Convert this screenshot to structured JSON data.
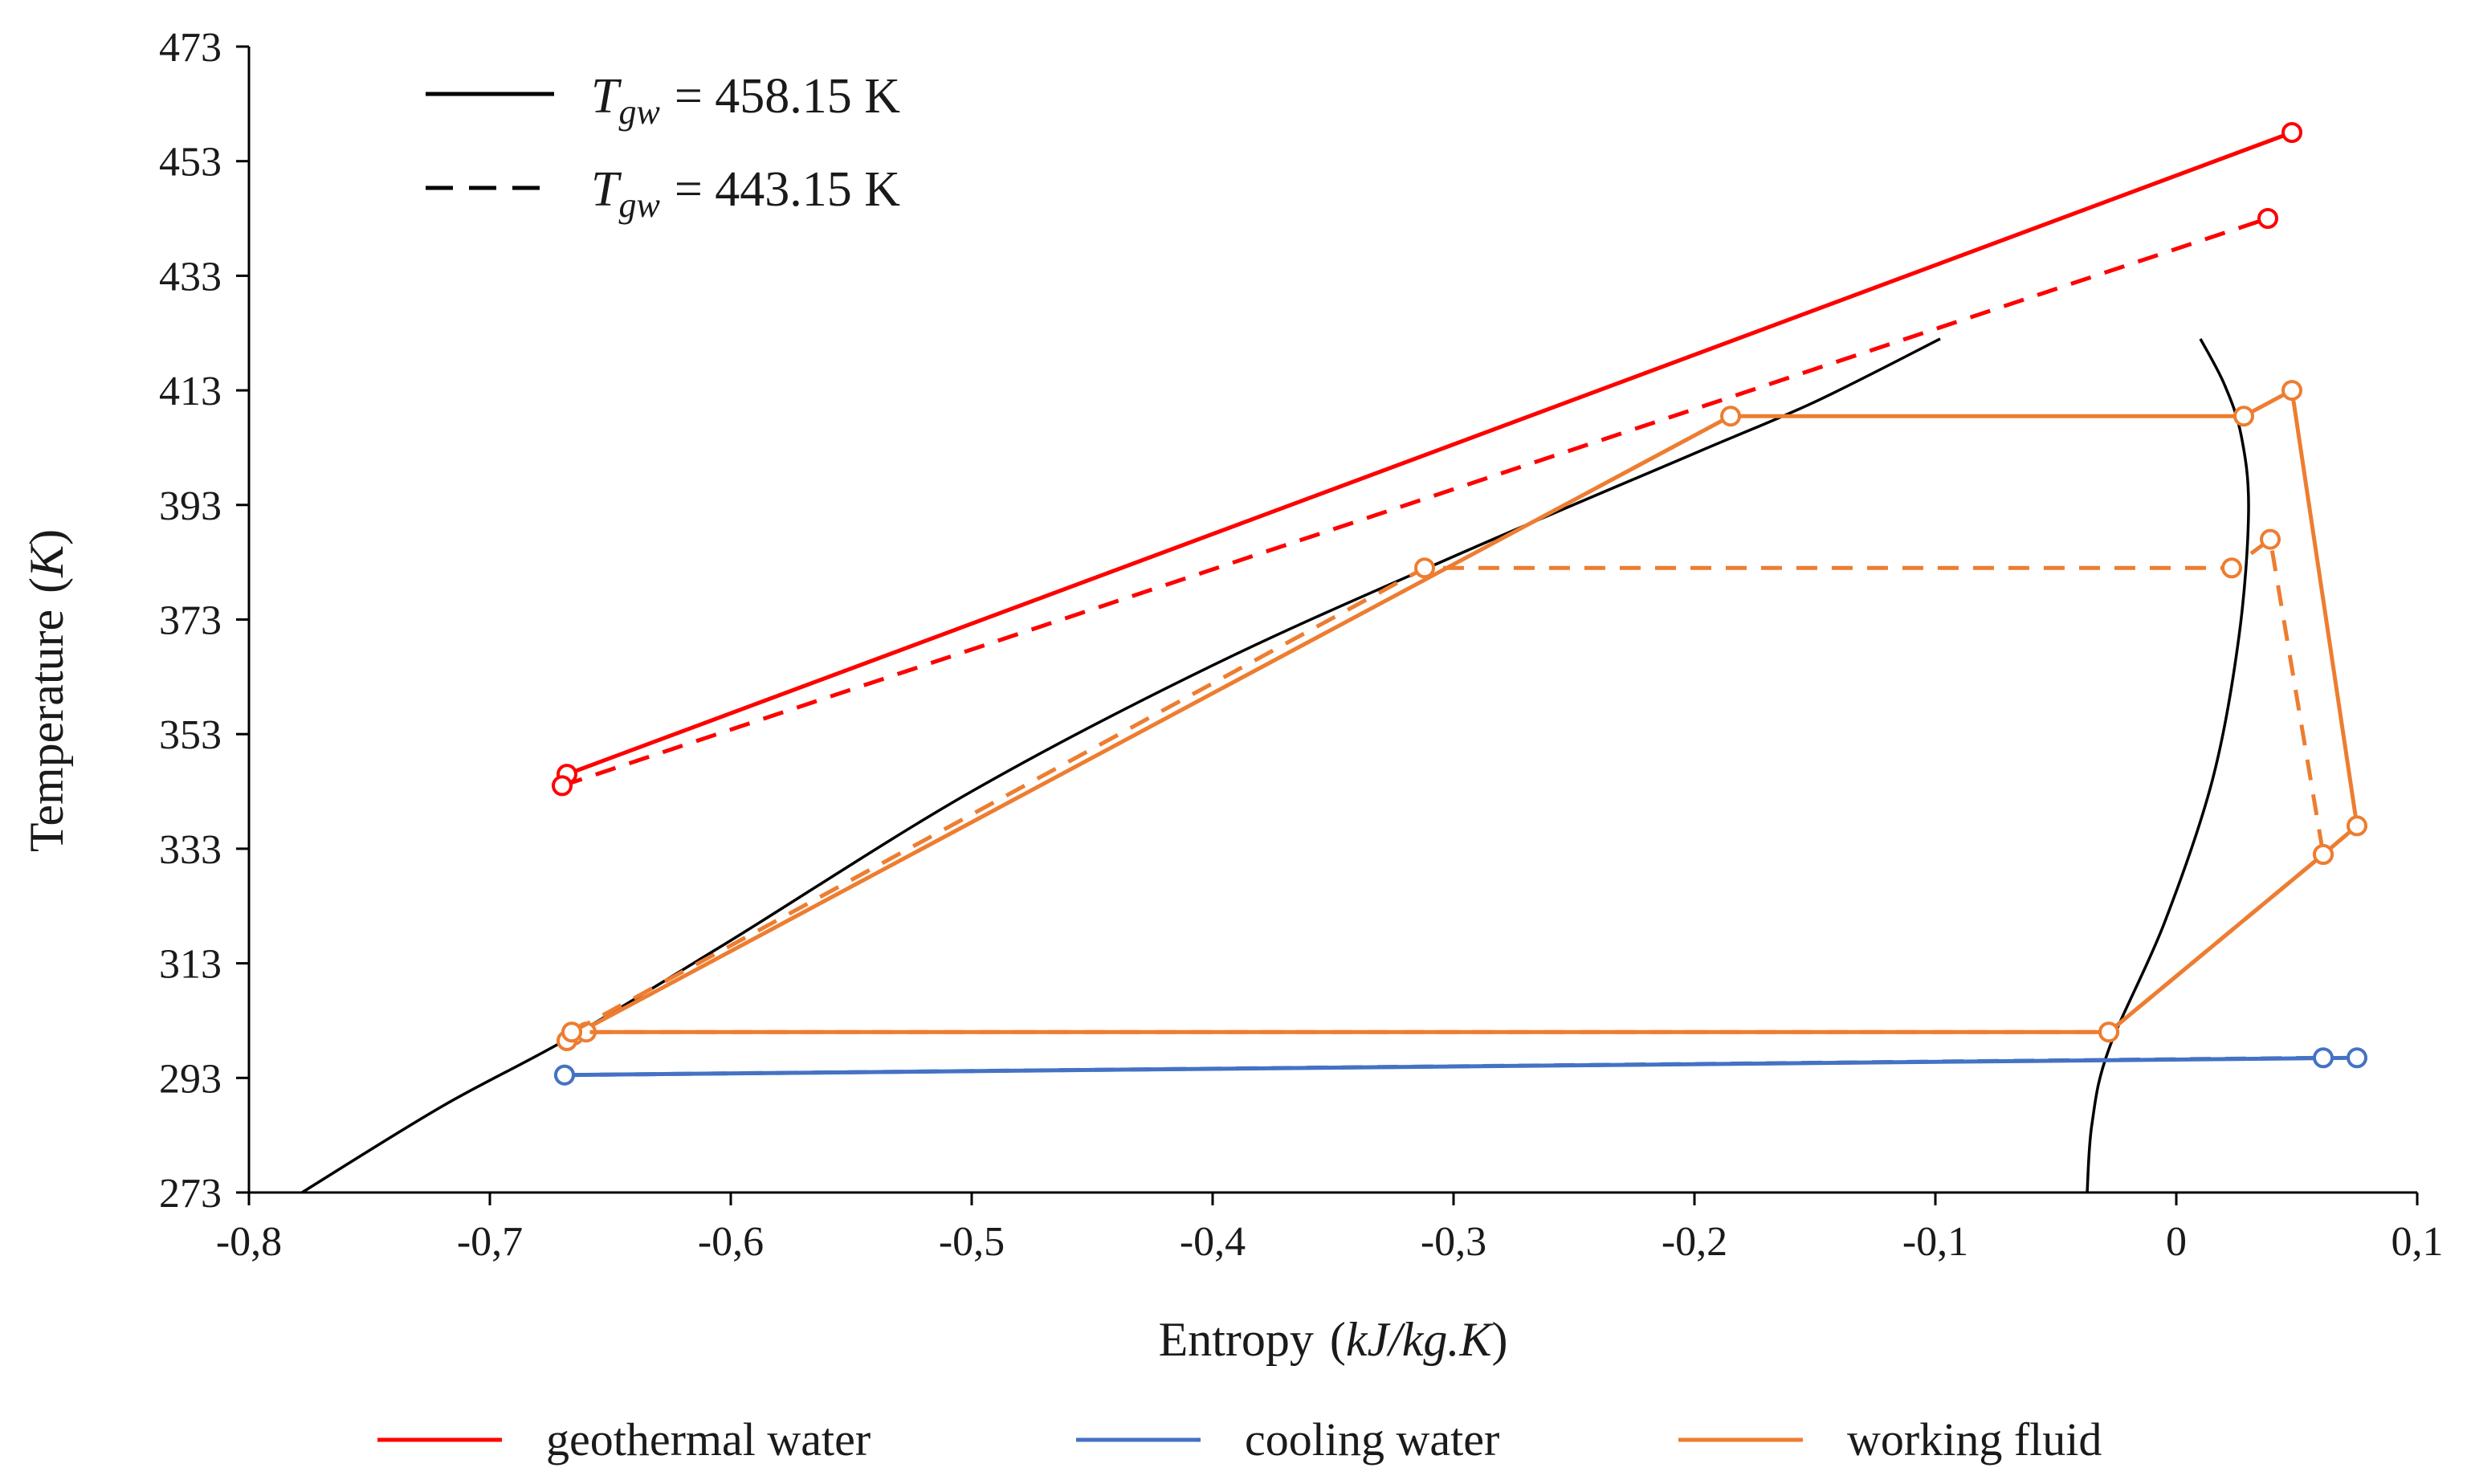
{
  "chart_data": {
    "type": "line",
    "title": "",
    "xlabel": "Entropy",
    "xlabel_unit": "kJ/kg.K",
    "ylabel": "Temperature",
    "ylabel_unit": "K",
    "xlim": [
      -0.8,
      0.1
    ],
    "ylim": [
      273,
      473
    ],
    "x_ticks": [
      -0.8,
      -0.7,
      -0.6,
      -0.5,
      -0.4,
      -0.3,
      -0.2,
      -0.1,
      0,
      0.1
    ],
    "x_tick_labels": [
      "-0,8",
      "-0,7",
      "-0,6",
      "-0,5",
      "-0,4",
      "-0,3",
      "-0,2",
      "-0,1",
      "0",
      "0,1"
    ],
    "y_ticks": [
      273,
      293,
      313,
      333,
      353,
      373,
      393,
      413,
      433,
      453,
      473
    ],
    "y_tick_labels": [
      "273",
      "293",
      "313",
      "333",
      "353",
      "373",
      "393",
      "413",
      "433",
      "453",
      "473"
    ],
    "grid": false,
    "line_style_legend": [
      {
        "style": "solid",
        "symbol": "T",
        "subscript": "gw",
        "value_text": "= 458.15 K"
      },
      {
        "style": "dashed",
        "symbol": "T",
        "subscript": "gw",
        "value_text": "= 443.15 K"
      }
    ],
    "legend": [
      {
        "label": "geothermal water",
        "color": "#ff0000"
      },
      {
        "label": "cooling water",
        "color": "#4472c4"
      },
      {
        "label": "working fluid",
        "color": "#ed7d31"
      }
    ],
    "legend_position": "bottom",
    "saturation_dome": {
      "color": "#000000",
      "liquid_line": [
        [
          -0.778,
          273
        ],
        [
          -0.72,
          288
        ],
        [
          -0.667,
          300
        ],
        [
          -0.6,
          317
        ],
        [
          -0.5,
          343
        ],
        [
          -0.4,
          365
        ],
        [
          -0.3,
          384
        ],
        [
          -0.2,
          402
        ],
        [
          -0.15,
          411
        ],
        [
          -0.098,
          422
        ]
      ],
      "vapor_line": [
        [
          -0.037,
          273
        ],
        [
          -0.035,
          285
        ],
        [
          -0.028,
          298
        ],
        [
          -0.005,
          320
        ],
        [
          0.015,
          345
        ],
        [
          0.026,
          370
        ],
        [
          0.03,
          392
        ],
        [
          0.027,
          405
        ],
        [
          0.02,
          414
        ],
        [
          0.01,
          422
        ]
      ]
    },
    "series": [
      {
        "name": "geothermal water",
        "case": "Tgw = 458.15 K",
        "color": "#ff0000",
        "style": "solid",
        "x": [
          -0.668,
          0.048
        ],
        "y": [
          346,
          458
        ]
      },
      {
        "name": "geothermal water",
        "case": "Tgw = 443.15 K",
        "color": "#ff0000",
        "style": "dashed",
        "x": [
          -0.67,
          0.038
        ],
        "y": [
          344,
          443
        ]
      },
      {
        "name": "cooling water",
        "case": "Tgw = 458.15 K",
        "color": "#4472c4",
        "style": "solid",
        "x": [
          -0.669,
          0.075
        ],
        "y": [
          293.5,
          296.5
        ]
      },
      {
        "name": "cooling water",
        "case": "Tgw = 443.15 K",
        "color": "#4472c4",
        "style": "dashed",
        "x": [
          -0.669,
          0.061
        ],
        "y": [
          293.5,
          296.5
        ]
      },
      {
        "name": "working fluid",
        "case": "Tgw = 458.15 K",
        "color": "#ed7d31",
        "style": "solid",
        "x": [
          -0.668,
          -0.665,
          -0.185,
          0.028,
          0.048,
          0.075,
          0.061,
          -0.028,
          -0.66,
          -0.668
        ],
        "y": [
          299.5,
          300.5,
          408.5,
          408.5,
          413,
          337,
          332,
          301,
          301,
          299.5
        ]
      },
      {
        "name": "working fluid",
        "case": "Tgw = 443.15 K",
        "color": "#ed7d31",
        "style": "dashed",
        "x": [
          -0.666,
          -0.312,
          0.023,
          0.039,
          0.061,
          -0.028,
          -0.666
        ],
        "y": [
          301,
          382,
          382,
          387,
          332,
          301,
          301
        ]
      }
    ]
  }
}
